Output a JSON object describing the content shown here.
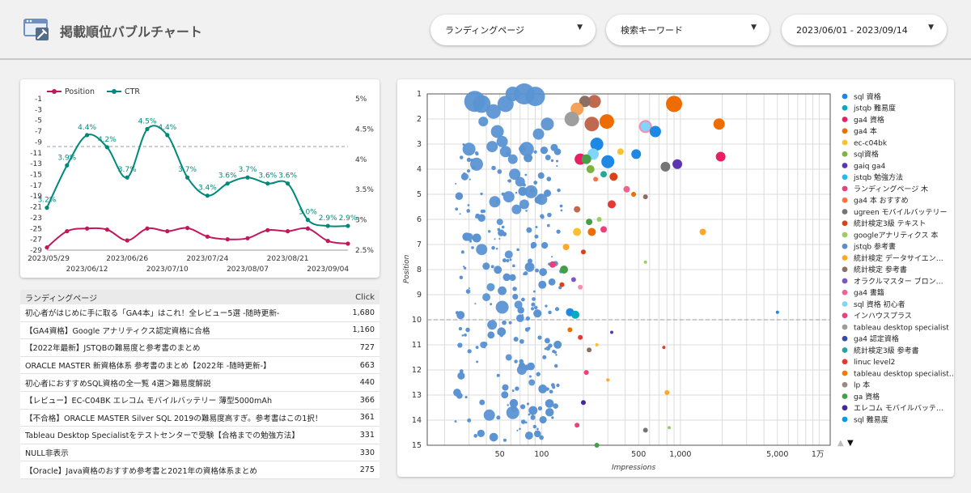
{
  "header": {
    "title": "掲載順位バブルチャート",
    "filters": [
      {
        "label": "ランディングページ"
      },
      {
        "label": "検索キーワード"
      },
      {
        "label": "2023/06/01 - 2023/09/14"
      }
    ]
  },
  "colors": {
    "position": "#c2185b",
    "ctr": "#00897b"
  },
  "line_chart": {
    "chart_data": {
      "type": "line",
      "legend": [
        "Position",
        "CTR"
      ],
      "x_labels_top": [
        "2023/05/29",
        "2023/06/26",
        "2023/07/24",
        "2023/08/21"
      ],
      "x_labels_bottom": [
        "2023/06/12",
        "2023/07/10",
        "2023/08/07",
        "2023/09/04"
      ],
      "y_left_ticks": [
        "-1",
        "-3",
        "-5",
        "-7",
        "-9",
        "-11",
        "-13",
        "-15",
        "-17",
        "-19",
        "-21",
        "-23",
        "-25",
        "-27",
        "-29"
      ],
      "y_right_ticks": [
        "5%",
        "4.5%",
        "4%",
        "3.5%",
        "3%",
        "2.5%"
      ],
      "ctr_points": [
        3.2,
        3.9,
        4.4,
        4.2,
        3.7,
        4.5,
        4.4,
        3.7,
        3.4,
        3.6,
        3.7,
        3.6,
        3.6,
        3.0,
        2.9,
        2.9
      ],
      "ctr_labels": [
        "3.2%",
        "3.9%",
        "4.4%",
        "4.2%",
        "3.7%",
        "4.5%",
        "4.4%",
        "3.7%",
        "3.4%",
        "3.6%",
        "3.7%",
        "3.6%",
        "3.6%",
        "3.0%",
        "2.9%",
        "2.9%"
      ],
      "position_points": [
        -28.5,
        -25.5,
        -25,
        -25.2,
        -27.2,
        -25,
        -25.5,
        -24.9,
        -26.5,
        -27,
        -26.8,
        -25.3,
        -25.5,
        -25,
        -27.3,
        -27.8
      ],
      "ref_line": -8.7,
      "ylim_left": [
        -29,
        -1
      ],
      "ylim_right": [
        2.5,
        5
      ]
    }
  },
  "table": {
    "headers": {
      "page": "ランディングページ",
      "click": "Click"
    },
    "rows": [
      {
        "page": "初心者がはじめに手に取る「GA4本」はこれ！全レビュー5選 -随時更新-",
        "click": "1,680"
      },
      {
        "page": "【GA4資格】Google アナリティクス認定資格に合格",
        "click": "1,160"
      },
      {
        "page": "【2022年最新】JSTQBの難易度と参考書のまとめ",
        "click": "727"
      },
      {
        "page": "ORACLE MASTER 新資格体系 参考書のまとめ【2022年 -随時更新-】",
        "click": "663"
      },
      {
        "page": "初心者におすすめSQL資格の全一覧 4選＞難易度解説",
        "click": "440"
      },
      {
        "page": "【レビュー】EC-C04BK エレコム モバイルバッテリー 薄型5000mAh",
        "click": "366"
      },
      {
        "page": "【不合格】ORACLE MASTER Silver SQL 2019の難易度高すぎ。参考書はこの1択！",
        "click": "361"
      },
      {
        "page": "Tableau Desktop Specialistをテストセンターで受験【合格までの勉強方法】",
        "click": "331"
      },
      {
        "page": "NULL非表示",
        "click": "330"
      },
      {
        "page": "【Oracle】Java資格のおすすめ参考書と2021年の資格体系まとめ",
        "click": "275"
      }
    ]
  },
  "bubble_chart": {
    "chart_data": {
      "type": "scatter",
      "xlabel": "Impressions",
      "ylabel": "Position",
      "x_scale": "log",
      "x_ticks": [
        "50",
        "100",
        "500",
        "1,000",
        "5,000",
        "1万"
      ],
      "x_tick_values": [
        50,
        100,
        500,
        1000,
        5000,
        10000
      ],
      "y_ticks": [
        "1",
        "2",
        "3",
        "4",
        "5",
        "6",
        "7",
        "8",
        "9",
        "10",
        "11",
        "12",
        "13",
        "14",
        "15"
      ],
      "ylim": [
        1,
        15
      ],
      "ref_line": 10,
      "series": [
        {
          "name": "sql 資格",
          "color": "#1e88e5"
        },
        {
          "name": "jstqb 難易度",
          "color": "#00acc1"
        },
        {
          "name": "ga4 資格",
          "color": "#e91e63"
        },
        {
          "name": "ga4 本",
          "color": "#ef6c00"
        },
        {
          "name": "ec-c04bk",
          "color": "#fbc02d"
        },
        {
          "name": "sql資格",
          "color": "#7cb342"
        },
        {
          "name": "gaiq ga4",
          "color": "#5e35b1"
        },
        {
          "name": "jstqb 勉強方法",
          "color": "#29b6f6"
        },
        {
          "name": "ランディングページ 木",
          "color": "#ec407a"
        },
        {
          "name": "ga4 本 おすすめ",
          "color": "#ff7043"
        },
        {
          "name": "ugreen モバイルバッテリー",
          "color": "#757575"
        },
        {
          "name": "統計検定3級 テキスト",
          "color": "#d84315"
        },
        {
          "name": "googleアナリティクス 本",
          "color": "#9ccc65"
        },
        {
          "name": "jstqb 参考書",
          "color": "#5c8fc7"
        },
        {
          "name": "統計検定 データサイエン…",
          "color": "#ffa726"
        },
        {
          "name": "統計検定 参考書",
          "color": "#8d6e63"
        },
        {
          "name": "オラクルマスター ブロン…",
          "color": "#7e57c2"
        },
        {
          "name": "ga4 書籍",
          "color": "#f06292"
        },
        {
          "name": "sql 資格 初心者",
          "color": "#81d4fa"
        },
        {
          "name": "インハウスプラス",
          "color": "#ec407a"
        },
        {
          "name": "tableau desktop specialist",
          "color": "#9e9e9e"
        },
        {
          "name": "ga4 認定資格",
          "color": "#3949ab"
        },
        {
          "name": "統計検定3級 参考書",
          "color": "#26a69a"
        },
        {
          "name": "linuc level2",
          "color": "#e53935"
        },
        {
          "name": "tableau desktop specialist…",
          "color": "#f57c00"
        },
        {
          "name": "lp 本",
          "color": "#a1887f"
        },
        {
          "name": "ga 資格",
          "color": "#43a047"
        },
        {
          "name": "エレコム モバイルバッテ…",
          "color": "#4527a0"
        },
        {
          "name": "sql 難易度",
          "color": "#039be5"
        }
      ]
    }
  }
}
